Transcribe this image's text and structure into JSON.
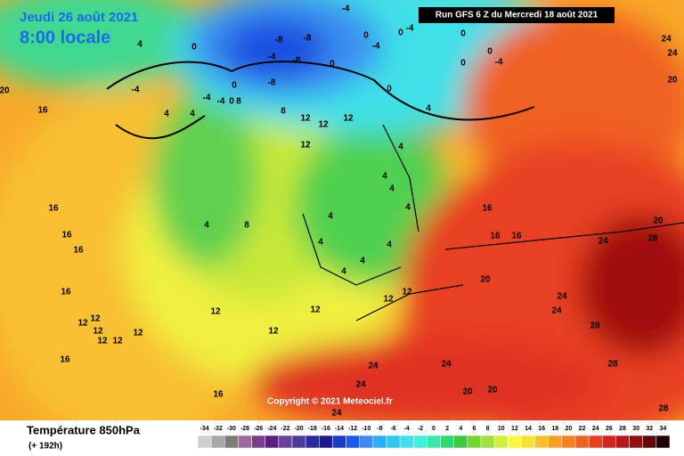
{
  "header": {
    "date": "Jeudi 26 août 2021",
    "time": "8:00 locale",
    "run": "Run GFS 6 Z du Mercredi 18 août 2021",
    "copyright": "Copyright © 2021 Meteociel.fr"
  },
  "legend": {
    "title": "Température 850hPa",
    "subtitle": "(+ 192h)",
    "ticks": [
      -34,
      -32,
      -30,
      -28,
      -26,
      -24,
      -22,
      -20,
      -18,
      -16,
      -14,
      -12,
      -10,
      -8,
      -6,
      -4,
      -2,
      0,
      2,
      4,
      6,
      8,
      10,
      12,
      14,
      16,
      18,
      20,
      22,
      24,
      26,
      28,
      30,
      32,
      34
    ],
    "colors": [
      "#d0d0d0",
      "#a8a8a8",
      "#7c7c7c",
      "#9a6aa0",
      "#7a3d8a",
      "#5a2080",
      "#6a3fa0",
      "#4a3aa0",
      "#2a2aa0",
      "#1a1a90",
      "#1a3ad0",
      "#1a5af0",
      "#3a8af8",
      "#2ab0f8",
      "#30c8f0",
      "#40e0f0",
      "#40f0d8",
      "#38e8a8",
      "#30d870",
      "#40c840",
      "#70d830",
      "#a0e040",
      "#d0f040",
      "#f8f840",
      "#f8e030",
      "#f8c028",
      "#f8a020",
      "#f88020",
      "#f06020",
      "#e84020",
      "#d82020",
      "#b81818",
      "#901010",
      "#600808",
      "#200000"
    ]
  },
  "map": {
    "labels": [
      "4",
      "0",
      "-8",
      "-8",
      "-4",
      "-8",
      "-8",
      "0",
      "-4",
      "0",
      "-4",
      "0",
      "-4",
      "0",
      "0",
      "-4",
      "0",
      "4",
      "0",
      "-4",
      "4",
      "4",
      "-4",
      "-4",
      "0",
      "8",
      "0",
      "8",
      "12",
      "12",
      "12",
      "12",
      "4",
      "4",
      "4",
      "4",
      "4",
      "4",
      "4",
      "4",
      "4",
      "4",
      "8",
      "16",
      "20",
      "16",
      "16",
      "16",
      "16",
      "12",
      "12",
      "12",
      "12",
      "12",
      "12",
      "16",
      "12",
      "12",
      "12",
      "12",
      "12",
      "16",
      "16",
      "16",
      "24",
      "20",
      "28",
      "24",
      "24",
      "20",
      "20",
      "24",
      "24",
      "28",
      "28",
      "24",
      "24",
      "24",
      "16",
      "20",
      "20",
      "24",
      "28"
    ]
  }
}
